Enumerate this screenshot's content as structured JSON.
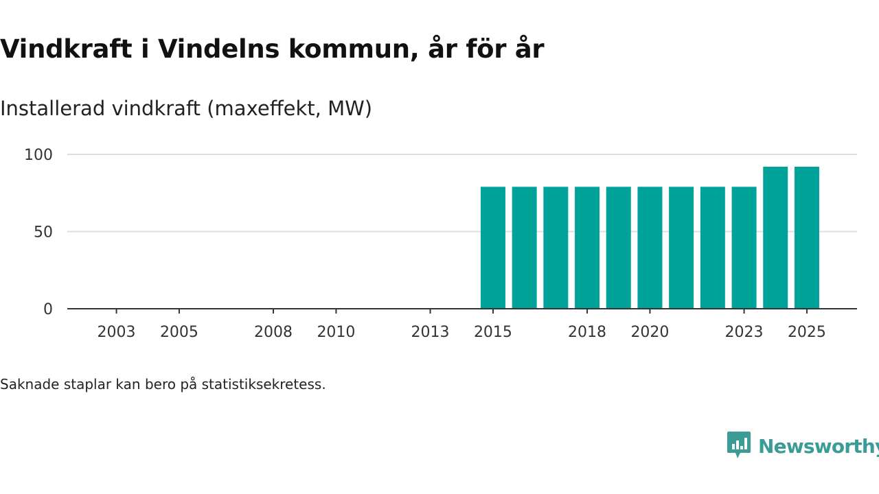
{
  "title": "Vindkraft i Vindelns kommun, år för år",
  "subtitle": "Installerad vindkraft (maxeffekt, MW)",
  "footnote": "Saknade staplar kan bero på statistiksekretess.",
  "brand": {
    "name": "Newsworthy",
    "logo_icon": "newsworthy-chart-bubble-icon",
    "color": "#3a9c95"
  },
  "colors": {
    "bar": "#00a39a",
    "grid": "#dddddd",
    "axis": "#333333"
  },
  "chart_data": {
    "type": "bar",
    "title": "Vindkraft i Vindelns kommun, år för år",
    "ylabel": "Installerad vindkraft (maxeffekt, MW)",
    "xlabel": "",
    "categories": [
      2002,
      2003,
      2004,
      2005,
      2006,
      2007,
      2008,
      2009,
      2010,
      2011,
      2012,
      2013,
      2014,
      2015,
      2016,
      2017,
      2018,
      2019,
      2020,
      2021,
      2022,
      2023,
      2024,
      2025
    ],
    "values": [
      null,
      null,
      null,
      null,
      null,
      null,
      null,
      null,
      null,
      null,
      null,
      null,
      null,
      79,
      79,
      79,
      79,
      79,
      79,
      79,
      79,
      79,
      92,
      92
    ],
    "x_tick_labels": [
      "2003",
      "2005",
      "2008",
      "2010",
      "2013",
      "2015",
      "2018",
      "2020",
      "2023",
      "2025"
    ],
    "y_ticks": [
      0,
      50,
      100
    ],
    "ylim": [
      0,
      100
    ],
    "grid": true,
    "legend": "none"
  }
}
